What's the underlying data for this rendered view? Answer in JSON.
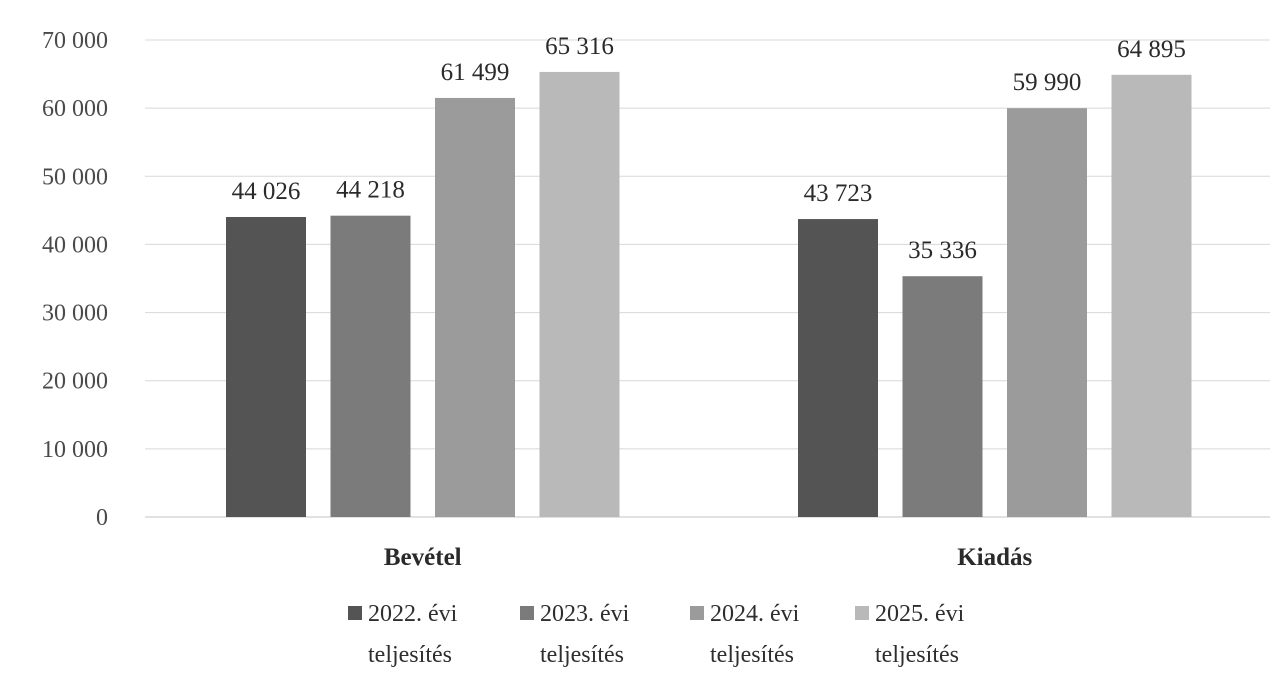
{
  "chart_data": {
    "type": "bar",
    "categories": [
      "Bevétel",
      "Kiadás"
    ],
    "series": [
      {
        "name": "2022. évi teljesítés",
        "name_lines": [
          "2022. évi",
          "teljesítés"
        ],
        "values": [
          44026,
          43723
        ],
        "value_labels": [
          "44 026",
          "43 723"
        ],
        "color": "#545454"
      },
      {
        "name": "2023. évi teljesítés",
        "name_lines": [
          "2023. évi",
          "teljesítés"
        ],
        "values": [
          44218,
          35336
        ],
        "value_labels": [
          "44 218",
          "35 336"
        ],
        "color": "#7b7b7b"
      },
      {
        "name": "2024. évi teljesítés",
        "name_lines": [
          "2024. évi",
          "teljesítés"
        ],
        "values": [
          61499,
          59990
        ],
        "value_labels": [
          "61 499",
          "59 990"
        ],
        "color": "#9b9b9b"
      },
      {
        "name": "2025. évi teljesítés",
        "name_lines": [
          "2025. évi",
          "teljesítés"
        ],
        "values": [
          65316,
          64895
        ],
        "value_labels": [
          "65 316",
          "64 895"
        ],
        "color": "#b9b9b9"
      }
    ],
    "yticks": [
      0,
      10000,
      20000,
      30000,
      40000,
      50000,
      60000,
      70000
    ],
    "ytick_labels": [
      "0",
      "10 000",
      "20 000",
      "30 000",
      "40 000",
      "50 000",
      "60 000",
      "70 000"
    ],
    "ylim": [
      0,
      70000
    ],
    "grid": true,
    "legend_position": "bottom",
    "title": "",
    "xlabel": "",
    "ylabel": ""
  }
}
